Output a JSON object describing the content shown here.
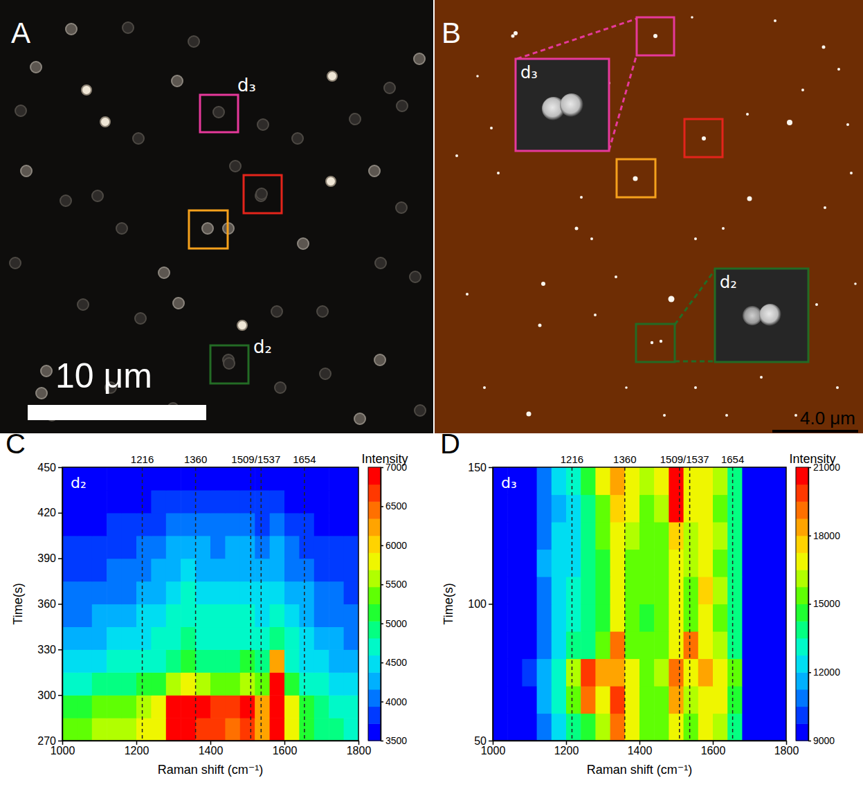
{
  "chart_data": [
    {
      "type": "heatmap",
      "panel": "C",
      "label": "d₂",
      "xlabel": "Raman shift (cm⁻¹)",
      "ylabel": "Time(s)",
      "xlim": [
        1000,
        1800
      ],
      "xticks": [
        1000,
        1200,
        1400,
        1600,
        1800
      ],
      "ylim": [
        270,
        450
      ],
      "yticks": [
        270,
        300,
        330,
        360,
        390,
        420,
        450
      ],
      "x_edges": [
        1000,
        1040,
        1080,
        1120,
        1160,
        1200,
        1240,
        1280,
        1320,
        1360,
        1400,
        1440,
        1480,
        1520,
        1560,
        1600,
        1640,
        1680,
        1720,
        1760,
        1800
      ],
      "y_edges": [
        270,
        285,
        300,
        315,
        330,
        345,
        360,
        375,
        390,
        405,
        420,
        435,
        450
      ],
      "z": [
        [
          5300,
          5400,
          5500,
          5500,
          5600,
          5700,
          5900,
          6800,
          7000,
          6700,
          6600,
          6500,
          6700,
          6200,
          7000,
          5800,
          5200,
          5000,
          4900,
          4800
        ],
        [
          5100,
          5200,
          5300,
          5300,
          5400,
          5500,
          5700,
          6800,
          7000,
          6800,
          6700,
          6600,
          6800,
          6300,
          7000,
          5700,
          5100,
          4900,
          4800,
          4700
        ],
        [
          4700,
          4800,
          4900,
          4900,
          5000,
          5100,
          5200,
          5600,
          5700,
          5500,
          5400,
          5400,
          5500,
          5300,
          6800,
          5200,
          4800,
          4600,
          4500,
          4500
        ],
        [
          4400,
          4500,
          4500,
          4600,
          4600,
          4700,
          4800,
          5000,
          5100,
          5000,
          4900,
          4900,
          5100,
          5000,
          6200,
          4800,
          4500,
          4400,
          4300,
          4300
        ],
        [
          4200,
          4300,
          4300,
          4400,
          4400,
          4500,
          4600,
          4800,
          4900,
          4800,
          4700,
          4700,
          4800,
          4700,
          5000,
          4600,
          4400,
          4200,
          4200,
          4100
        ],
        [
          4100,
          4100,
          4200,
          4200,
          4300,
          4400,
          4500,
          4600,
          4800,
          4700,
          4600,
          4600,
          4600,
          4500,
          4700,
          4500,
          4300,
          4100,
          4100,
          4000
        ],
        [
          4000,
          4000,
          4100,
          4100,
          4100,
          4200,
          4300,
          4500,
          4600,
          4500,
          4400,
          4400,
          4400,
          4400,
          4500,
          4300,
          4200,
          4000,
          4000,
          3900
        ],
        [
          3900,
          3900,
          3900,
          4000,
          4000,
          4100,
          4200,
          4300,
          4400,
          4300,
          4200,
          4200,
          4200,
          4200,
          4300,
          4100,
          4000,
          3900,
          3900,
          3800
        ],
        [
          3800,
          3800,
          3900,
          3900,
          3900,
          4000,
          4100,
          4200,
          4300,
          4200,
          4100,
          4200,
          4200,
          4100,
          4200,
          4100,
          3900,
          3800,
          3800,
          3800
        ],
        [
          3700,
          3700,
          3700,
          3800,
          3800,
          3900,
          3900,
          4000,
          4100,
          4000,
          4000,
          4000,
          4000,
          3900,
          4000,
          3900,
          3800,
          3700,
          3700,
          3700
        ],
        [
          3600,
          3600,
          3600,
          3700,
          3700,
          3700,
          3800,
          3800,
          3900,
          3800,
          3800,
          3800,
          3800,
          3800,
          3800,
          3700,
          3700,
          3600,
          3600,
          3600
        ],
        [
          3500,
          3500,
          3600,
          3600,
          3600,
          3600,
          3700,
          3700,
          3700,
          3700,
          3700,
          3700,
          3700,
          3700,
          3700,
          3600,
          3600,
          3500,
          3500,
          3500
        ]
      ],
      "colorbar": {
        "title": "Intensity",
        "range": [
          3500,
          7000
        ],
        "ticks": [
          3500,
          4000,
          4500,
          5000,
          5500,
          6000,
          6500,
          7000
        ]
      },
      "markers": [
        {
          "label": "1216",
          "x": [
            1216
          ]
        },
        {
          "label": "1360",
          "x": [
            1360
          ]
        },
        {
          "label": "1509/1537",
          "x": [
            1509,
            1537
          ]
        },
        {
          "label": "1654",
          "x": [
            1654
          ]
        }
      ]
    },
    {
      "type": "heatmap",
      "panel": "D",
      "label": "d₃",
      "xlabel": "Raman shift (cm⁻¹)",
      "ylabel": "Time(s)",
      "xlim": [
        1000,
        1800
      ],
      "xticks": [
        1000,
        1200,
        1400,
        1600,
        1800
      ],
      "ylim": [
        50,
        150
      ],
      "yticks": [
        50,
        100,
        150
      ],
      "x_edges": [
        1000,
        1040,
        1080,
        1120,
        1160,
        1200,
        1240,
        1280,
        1320,
        1360,
        1400,
        1440,
        1480,
        1520,
        1560,
        1600,
        1640,
        1680,
        1720,
        1760,
        1800
      ],
      "y_edges": [
        50,
        60,
        70,
        80,
        90,
        100,
        110,
        120,
        130,
        140,
        150
      ],
      "z": [
        [
          9000,
          9000,
          9500,
          11000,
          12500,
          13500,
          14500,
          16000,
          19000,
          17000,
          15500,
          15000,
          16500,
          15000,
          16500,
          16000,
          14000,
          9500,
          9000,
          9000
        ],
        [
          9000,
          9000,
          9500,
          11500,
          13000,
          15000,
          19000,
          17000,
          20000,
          17000,
          15500,
          15000,
          18000,
          16000,
          17000,
          16500,
          14500,
          9500,
          9000,
          9000
        ],
        [
          9000,
          9000,
          10000,
          11500,
          13000,
          16000,
          20000,
          18000,
          18000,
          16500,
          15500,
          16000,
          19000,
          17000,
          18000,
          17000,
          15000,
          9500,
          9000,
          9000
        ],
        [
          9000,
          9000,
          9500,
          11000,
          12500,
          13500,
          14000,
          15000,
          19000,
          15500,
          15000,
          15500,
          17000,
          19000,
          17000,
          16000,
          14000,
          9500,
          9000,
          9000
        ],
        [
          9000,
          9000,
          9500,
          10500,
          12000,
          13000,
          13500,
          14500,
          17000,
          15000,
          14500,
          15000,
          16500,
          15500,
          16500,
          15500,
          13500,
          9500,
          9000,
          9000
        ],
        [
          9000,
          9000,
          9500,
          11000,
          12500,
          13000,
          13500,
          14500,
          16500,
          15500,
          15000,
          15000,
          17000,
          15500,
          17500,
          16000,
          13500,
          9500,
          9000,
          9000
        ],
        [
          9000,
          9000,
          9500,
          11500,
          12000,
          12500,
          13500,
          14500,
          16500,
          15500,
          15000,
          15500,
          17000,
          16000,
          17000,
          15500,
          13500,
          9500,
          9000,
          9000
        ],
        [
          9000,
          9000,
          9500,
          11000,
          12000,
          12500,
          13500,
          15000,
          17000,
          16000,
          15500,
          15500,
          17500,
          16000,
          16500,
          16000,
          14000,
          9500,
          9000,
          9000
        ],
        [
          9000,
          9000,
          9500,
          10500,
          11500,
          12500,
          13500,
          15500,
          17500,
          16500,
          15500,
          16000,
          21000,
          16500,
          16500,
          15500,
          13500,
          9500,
          9000,
          9000
        ],
        [
          9000,
          9000,
          9500,
          10500,
          12000,
          13000,
          14500,
          16500,
          18500,
          17000,
          16000,
          16500,
          21000,
          16500,
          17000,
          16000,
          14000,
          9500,
          9000,
          9000
        ]
      ],
      "colorbar": {
        "title": "Intensity",
        "range": [
          9000,
          21000
        ],
        "ticks": [
          9000,
          12000,
          15000,
          18000,
          21000
        ]
      },
      "markers": [
        {
          "label": "1216",
          "x": [
            1216
          ]
        },
        {
          "label": "1360",
          "x": [
            1360
          ]
        },
        {
          "label": "1509/1537",
          "x": [
            1509,
            1537
          ]
        },
        {
          "label": "1654",
          "x": [
            1654
          ]
        }
      ]
    }
  ],
  "images": [
    {
      "type": "micrograph",
      "panel": "A",
      "scale_bar": "10 μm",
      "regions": [
        {
          "label": "d₃",
          "color": "#e6399b"
        },
        {
          "color": "#e3241b"
        },
        {
          "color": "#f5a11c"
        },
        {
          "label": "d₂",
          "color": "#236b25"
        }
      ]
    },
    {
      "type": "afm",
      "panel": "B",
      "scale_bar": "4.0 μm",
      "regions": [
        {
          "label": "d₃",
          "color": "#e6399b"
        },
        {
          "color": "#e3241b"
        },
        {
          "color": "#f5a11c"
        },
        {
          "label": "d₂",
          "color": "#236b25"
        }
      ]
    }
  ]
}
